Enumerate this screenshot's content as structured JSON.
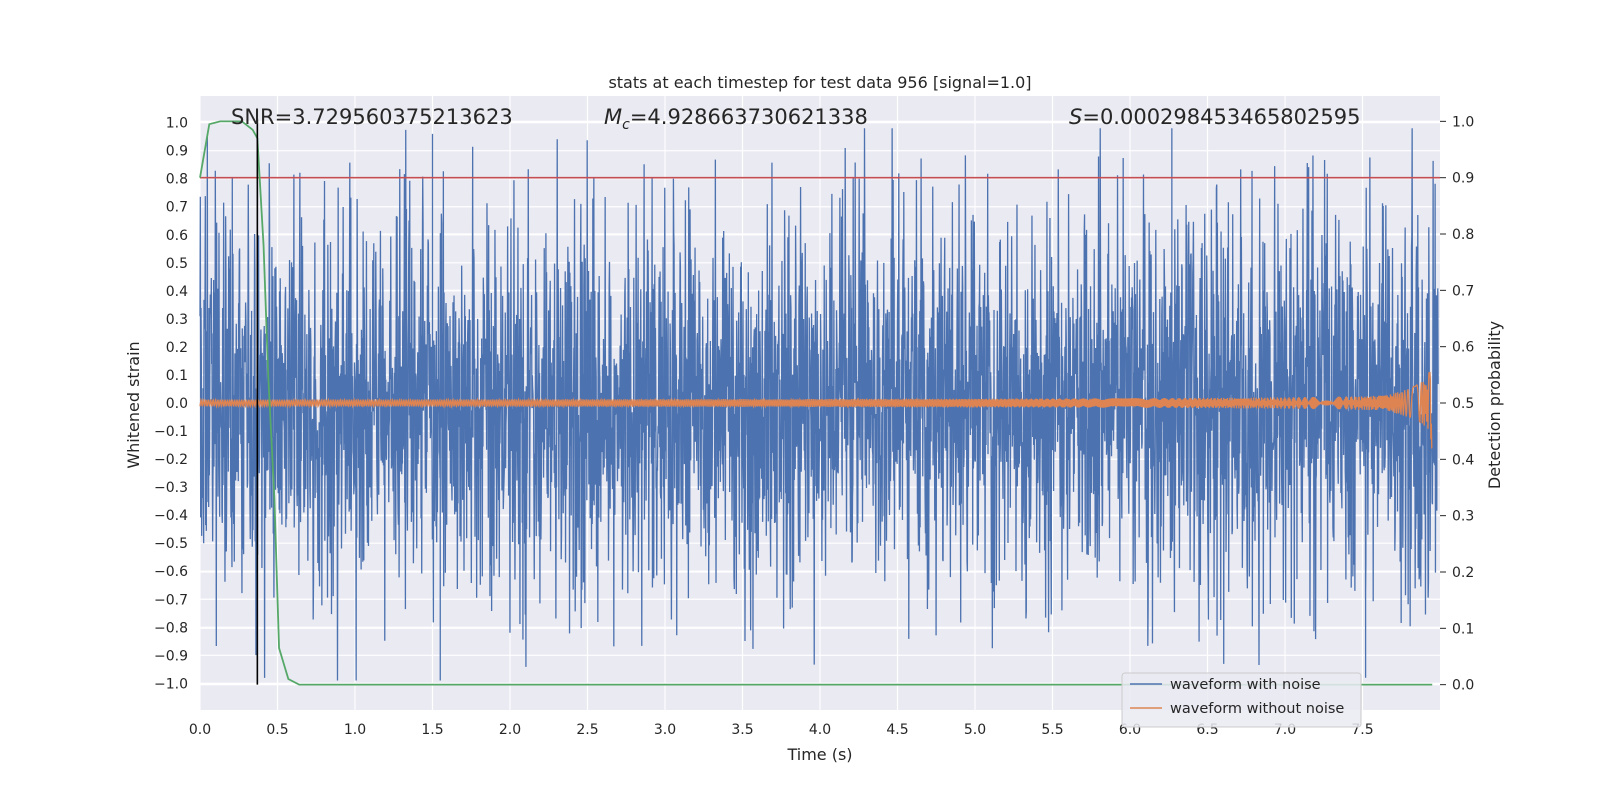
{
  "chart_data": {
    "type": "line",
    "title": "stats at each timestep for test data 956 [signal=1.0]",
    "xlabel": "Time (s)",
    "ylabel": "Whitened strain",
    "y2label": "Detection probability",
    "xlim": [
      0.0,
      8.0
    ],
    "ylim": [
      -1.095,
      1.095
    ],
    "y2lim": [
      -0.045,
      1.045
    ],
    "x_ticks": [
      0.0,
      0.5,
      1.0,
      1.5,
      2.0,
      2.5,
      3.0,
      3.5,
      4.0,
      4.5,
      5.0,
      5.5,
      6.0,
      6.5,
      7.0,
      7.5
    ],
    "x_tick_labels": [
      "0.0",
      "0.5",
      "1.0",
      "1.5",
      "2.0",
      "2.5",
      "3.0",
      "3.5",
      "4.0",
      "4.5",
      "5.0",
      "5.5",
      "6.0",
      "6.5",
      "7.0",
      "7.5"
    ],
    "y_ticks": [
      1.0,
      0.9,
      0.8,
      0.7,
      0.6,
      0.5,
      0.4,
      0.3,
      0.2,
      0.1,
      0.0,
      -0.1,
      -0.2,
      -0.3,
      -0.4,
      -0.5,
      -0.6,
      -0.7,
      -0.8,
      -0.9,
      -1.0
    ],
    "y_tick_labels": [
      "1.0",
      "0.9",
      "0.8",
      "0.7",
      "0.6",
      "0.5",
      "0.4",
      "0.3",
      "0.2",
      "0.1",
      "0.0",
      "−0.1",
      "−0.2",
      "−0.3",
      "−0.4",
      "−0.5",
      "−0.6",
      "−0.7",
      "−0.8",
      "−0.9",
      "−1.0"
    ],
    "y2_ticks": [
      1.0,
      0.9,
      0.8,
      0.7,
      0.6,
      0.5,
      0.4,
      0.3,
      0.2,
      0.1,
      0.0
    ],
    "y2_tick_labels": [
      "1.0",
      "0.9",
      "0.8",
      "0.7",
      "0.6",
      "0.5",
      "0.4",
      "0.3",
      "0.2",
      "0.1",
      "0.0"
    ],
    "grid": true,
    "legend_placement": "lower-right",
    "annotations": {
      "snr": "SNR=3.729560375213623",
      "mc_symbol": "M",
      "mc_sub": "c",
      "mc_value": "=4.928663730621338",
      "s_symbol": "S",
      "s_value": "=0.000298453465802595"
    },
    "threshold_line": {
      "axis": "y2",
      "value": 0.9,
      "color": "#c44e52"
    },
    "marker_line": {
      "x": 0.37,
      "color": "#000000"
    },
    "series": [
      {
        "name": "waveform with noise",
        "color": "#4c72b0",
        "kind": "noise",
        "x_range": [
          0.0,
          7.99
        ],
        "typical_envelope": 0.5,
        "extremes": {
          "max": 0.98,
          "min": -0.99
        }
      },
      {
        "name": "waveform without noise",
        "color": "#dd8452",
        "kind": "chirp",
        "x_range": [
          0.0,
          7.95
        ],
        "amplitude_start": 0.012,
        "amplitude_end": 0.19
      },
      {
        "name": "detection probability",
        "axis": "y2",
        "color": "#55a868",
        "x": [
          0.0,
          0.06,
          0.13,
          0.2,
          0.27,
          0.34,
          0.37,
          0.41,
          0.44,
          0.48,
          0.51,
          0.57,
          0.64,
          1.0,
          2.0,
          3.0,
          4.0,
          5.0,
          6.0,
          7.0,
          7.95
        ],
        "values": [
          0.9,
          0.995,
          1.0,
          1.0,
          1.0,
          0.985,
          0.97,
          0.78,
          0.55,
          0.33,
          0.065,
          0.01,
          0.0,
          0.0,
          0.0,
          0.0,
          0.0,
          0.0,
          0.0,
          0.0,
          0.0
        ]
      }
    ],
    "legend": [
      "waveform with noise",
      "waveform without noise"
    ]
  }
}
